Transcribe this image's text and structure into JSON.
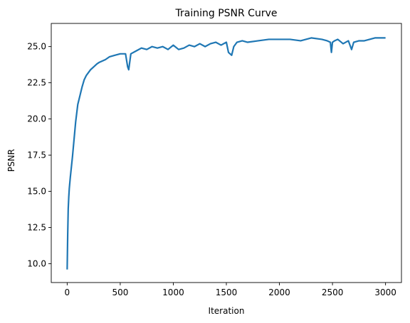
{
  "chart_data": {
    "type": "line",
    "title": "Training PSNR Curve",
    "xlabel": "Iteration",
    "ylabel": "PSNR",
    "xlim": [
      -150,
      3150
    ],
    "ylim": [
      8.7,
      26.6
    ],
    "xticks": [
      0,
      500,
      1000,
      1500,
      2000,
      2500,
      3000
    ],
    "xtick_labels": [
      "0",
      "500",
      "1000",
      "1500",
      "2000",
      "2500",
      "3000"
    ],
    "yticks": [
      10.0,
      12.5,
      15.0,
      17.5,
      20.0,
      22.5,
      25.0
    ],
    "ytick_labels": [
      "10.0",
      "12.5",
      "15.0",
      "17.5",
      "20.0",
      "22.5",
      "25.0"
    ],
    "grid": false,
    "series": [
      {
        "color": "#1f77b4",
        "x": [
          0,
          5,
          10,
          15,
          20,
          30,
          40,
          50,
          60,
          70,
          80,
          90,
          100,
          120,
          140,
          160,
          180,
          200,
          220,
          250,
          280,
          300,
          330,
          360,
          400,
          450,
          500,
          550,
          570,
          580,
          600,
          650,
          700,
          750,
          800,
          850,
          900,
          950,
          1000,
          1050,
          1100,
          1150,
          1200,
          1250,
          1300,
          1350,
          1400,
          1450,
          1500,
          1520,
          1550,
          1570,
          1600,
          1650,
          1700,
          1800,
          1900,
          2000,
          2100,
          2200,
          2300,
          2400,
          2450,
          2480,
          2490,
          2500,
          2520,
          2550,
          2600,
          2650,
          2680,
          2700,
          2750,
          2800,
          2850,
          2900,
          2950,
          3000
        ],
        "y": [
          9.6,
          12.0,
          13.8,
          14.6,
          15.2,
          16.0,
          16.7,
          17.4,
          18.2,
          19.0,
          19.8,
          20.4,
          21.0,
          21.6,
          22.2,
          22.7,
          23.0,
          23.2,
          23.4,
          23.6,
          23.8,
          23.9,
          24.0,
          24.1,
          24.3,
          24.4,
          24.5,
          24.5,
          23.6,
          23.4,
          24.5,
          24.7,
          24.9,
          24.8,
          25.0,
          24.9,
          25.0,
          24.8,
          25.1,
          24.8,
          24.9,
          25.1,
          25.0,
          25.2,
          25.0,
          25.2,
          25.3,
          25.1,
          25.3,
          24.6,
          24.4,
          25.0,
          25.3,
          25.4,
          25.3,
          25.4,
          25.5,
          25.5,
          25.5,
          25.4,
          25.6,
          25.5,
          25.4,
          25.3,
          24.6,
          25.3,
          25.4,
          25.5,
          25.2,
          25.4,
          24.8,
          25.3,
          25.4,
          25.4,
          25.5,
          25.6,
          25.6,
          25.6
        ]
      }
    ]
  }
}
